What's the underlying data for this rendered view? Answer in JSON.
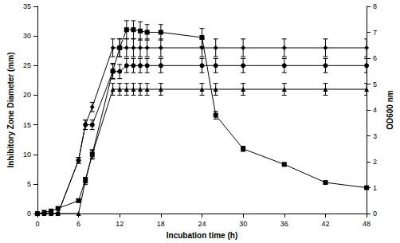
{
  "chart_data": {
    "type": "line",
    "x_label": "Incubation time (h)",
    "y_label": "Inhibitory Zone Diameter (mm)",
    "y2_label": "OD600 nm",
    "x": [
      0,
      1,
      2,
      3,
      6,
      7,
      8,
      11,
      12,
      13,
      14,
      15,
      16,
      18,
      24,
      26,
      30,
      36,
      42,
      48
    ],
    "xlim": [
      0,
      48
    ],
    "xticks": [
      0,
      6,
      12,
      18,
      24,
      30,
      36,
      42,
      48
    ],
    "ylim": [
      0,
      35
    ],
    "yticks": [
      0,
      5,
      10,
      15,
      20,
      25,
      30,
      35
    ],
    "y2lim": [
      0,
      8
    ],
    "y2ticks": [
      0,
      1,
      2,
      3,
      4,
      5,
      6,
      7,
      8
    ],
    "grid": false,
    "series": [
      {
        "color": "#000000",
        "marker": "diamond",
        "values": [
          0,
          0,
          0,
          0,
          9,
          15,
          18,
          28,
          28,
          28,
          28,
          28,
          28,
          28,
          28,
          28,
          28,
          28,
          28,
          28
        ],
        "errors": [
          0,
          0,
          0,
          0,
          0.5,
          0.8,
          0.8,
          1.5,
          1.5,
          1.5,
          1.5,
          1.5,
          1.5,
          1.5,
          1.5,
          1.5,
          1.5,
          1.5,
          1.5,
          1.5
        ]
      },
      {
        "color": "#000000",
        "marker": "circle",
        "values": [
          0,
          0,
          0,
          0,
          9,
          15,
          15,
          24,
          24,
          25,
          25,
          25,
          25,
          25,
          25,
          25,
          25,
          25,
          25,
          25
        ],
        "errors": [
          0,
          0,
          0,
          0,
          0.5,
          0.8,
          0.8,
          1.2,
          1.2,
          1.2,
          1.2,
          1.2,
          1.2,
          1.2,
          1.2,
          1.2,
          1.2,
          1.2,
          1.2,
          1.2
        ]
      },
      {
        "color": "#000000",
        "marker": "triangle",
        "values": [
          0,
          0,
          0,
          0,
          0,
          5.5,
          10,
          21,
          21,
          21,
          21,
          21,
          21,
          21,
          21,
          21,
          21,
          21,
          21,
          21
        ],
        "errors": [
          0,
          0,
          0,
          0,
          0,
          0.6,
          0.8,
          1,
          1,
          1,
          1,
          1,
          1,
          1,
          1,
          1,
          1,
          1,
          1,
          1
        ]
      },
      {
        "color": "#000000",
        "marker": "square",
        "axis": "y2",
        "values": [
          0,
          0.05,
          0.1,
          0.2,
          0.5,
          1.3,
          2.3,
          5.5,
          6.4,
          7.1,
          7.1,
          7.05,
          7.0,
          7.0,
          6.8,
          3.8,
          2.5,
          1.9,
          1.2,
          1.0
        ],
        "errors": [
          0,
          0,
          0,
          0,
          0.05,
          0.1,
          0.15,
          0.3,
          0.35,
          0.35,
          0.35,
          0.35,
          0.3,
          0.3,
          0.35,
          0.15,
          0.1,
          0.05,
          0.05,
          0.03
        ]
      }
    ]
  }
}
